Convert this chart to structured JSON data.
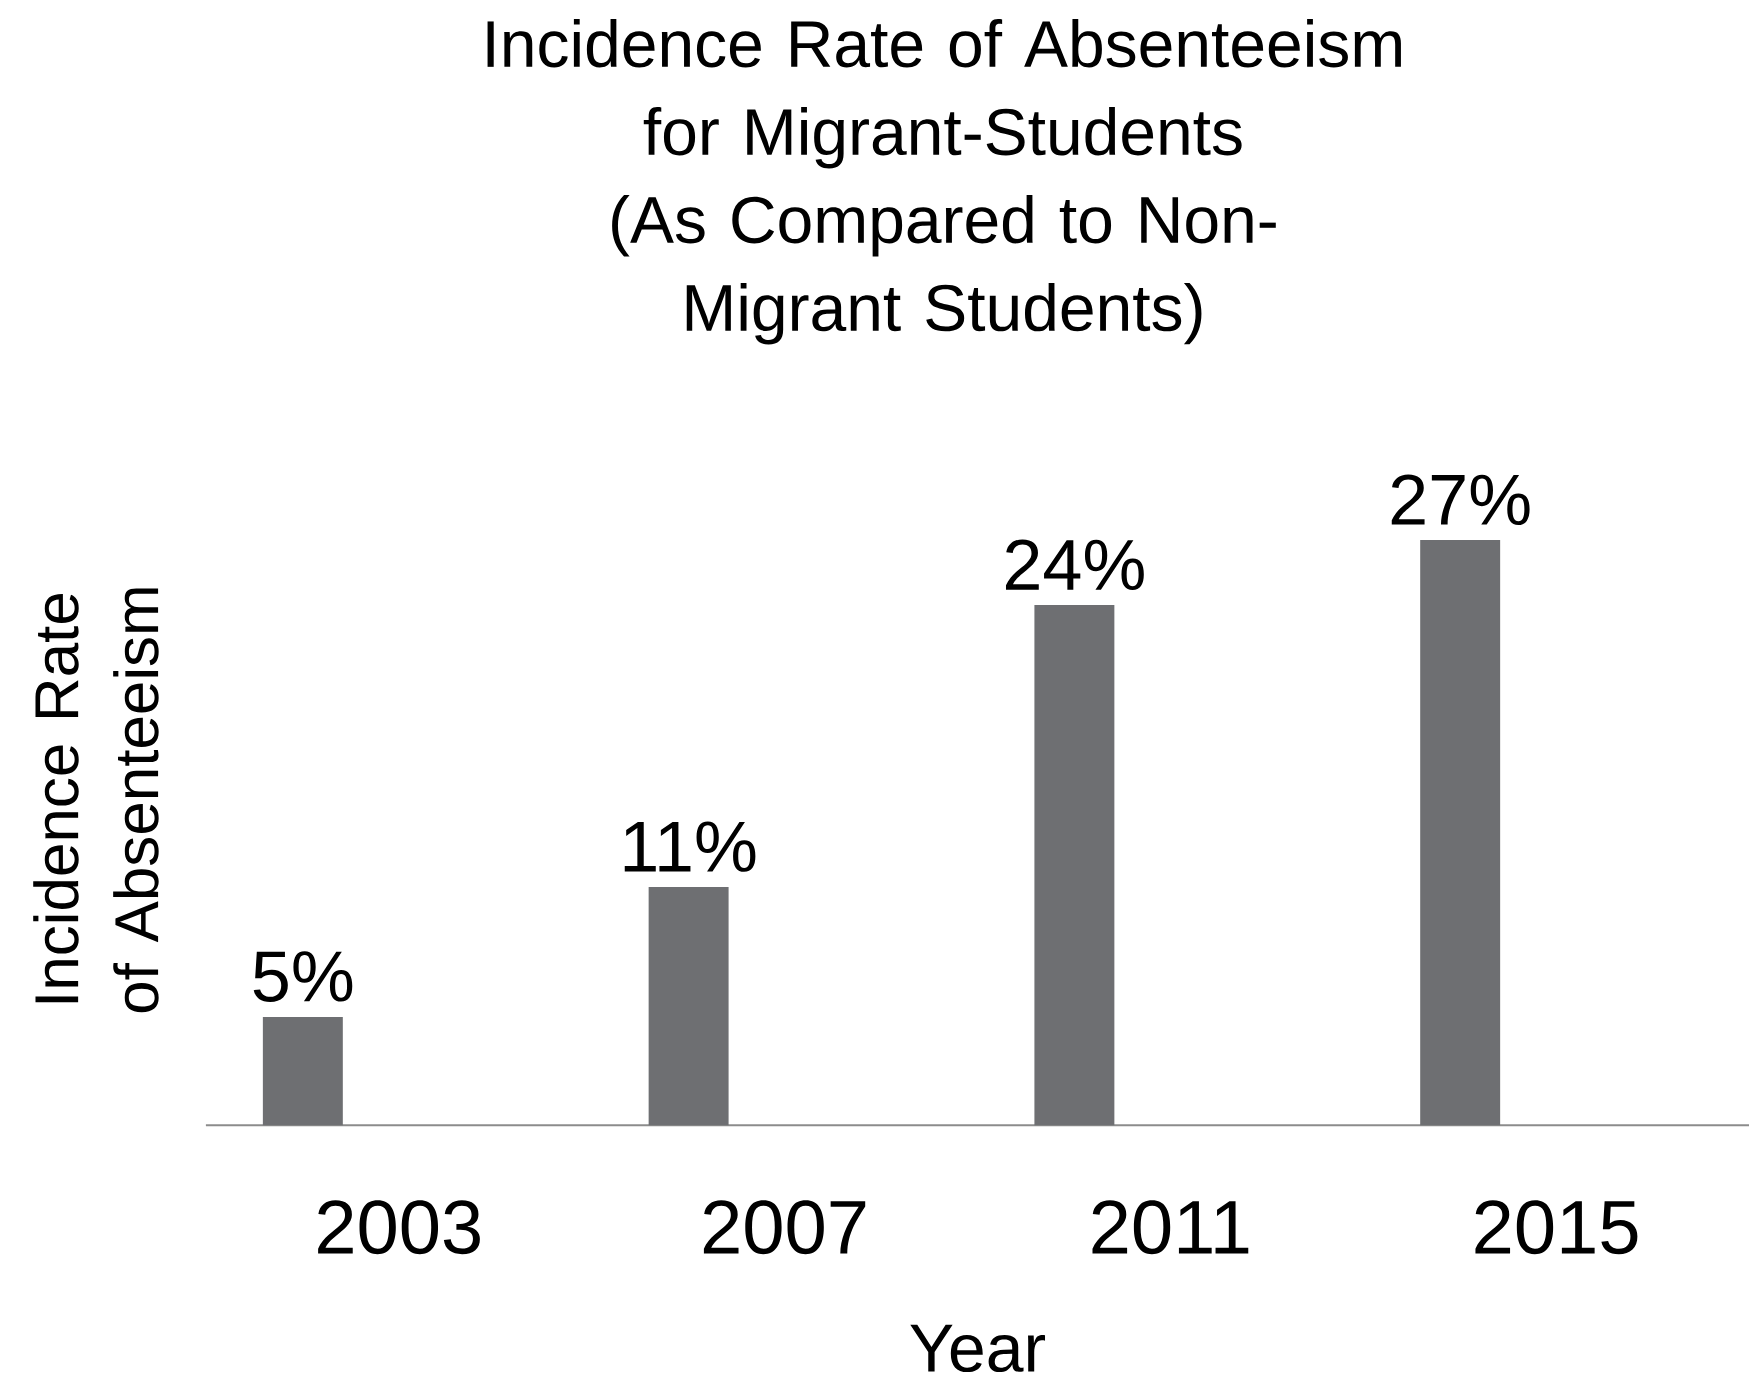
{
  "chart_data": {
    "type": "bar",
    "title": "Incidence Rate of Absenteeism for Migrant-Students",
    "subtitle": "(As Compared to Non-Migrant Students)",
    "xlabel": "Year",
    "ylabel": "Incidence Rate of Absenteeism",
    "categories": [
      "2003",
      "2007",
      "2011",
      "2015"
    ],
    "values": [
      5,
      11,
      24,
      27
    ],
    "value_labels": [
      "5%",
      "11%",
      "24%",
      "27%"
    ],
    "color": "#6e6f72"
  }
}
